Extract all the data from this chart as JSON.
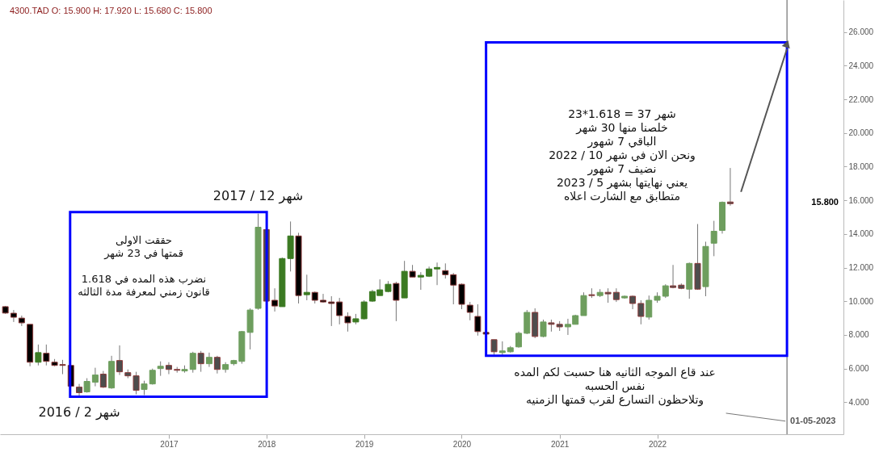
{
  "chart_data": {
    "type": "candlestick",
    "title": "4300.TAD   O: 15.900  H: 17.920  L: 15.680  C: 15.800",
    "x": [
      "2015-05",
      "2015-06",
      "2015-07",
      "2015-08",
      "2015-09",
      "2015-10",
      "2015-11",
      "2015-12",
      "2016-01",
      "2016-02",
      "2016-03",
      "2016-04",
      "2016-05",
      "2016-06",
      "2016-07",
      "2016-08",
      "2016-09",
      "2016-10",
      "2016-11",
      "2016-12",
      "2017-01",
      "2017-02",
      "2017-03",
      "2017-04",
      "2017-05",
      "2017-06",
      "2017-07",
      "2017-08",
      "2017-09",
      "2017-10",
      "2017-11",
      "2017-12",
      "2018-01",
      "2018-02",
      "2018-03",
      "2018-04",
      "2018-05",
      "2018-06",
      "2018-07",
      "2018-08",
      "2018-09",
      "2018-10",
      "2018-11",
      "2018-12",
      "2019-01",
      "2019-02",
      "2019-03",
      "2019-04",
      "2019-05",
      "2019-06",
      "2019-07",
      "2019-08",
      "2019-09",
      "2019-10",
      "2019-11",
      "2019-12",
      "2020-01",
      "2020-02",
      "2020-03",
      "2020-04",
      "2020-05",
      "2020-06",
      "2020-07",
      "2020-08",
      "2020-09",
      "2020-10",
      "2020-11",
      "2020-12",
      "2021-01",
      "2021-02",
      "2021-03",
      "2021-04",
      "2021-05",
      "2021-06",
      "2021-07",
      "2021-08",
      "2021-09",
      "2021-10",
      "2021-11",
      "2021-12",
      "2022-01",
      "2022-02",
      "2022-03",
      "2022-04",
      "2022-05",
      "2022-06",
      "2022-07",
      "2022-08",
      "2022-09",
      "2022-10"
    ],
    "ohlc": [
      [
        9.68,
        9.72,
        9.25,
        9.3
      ],
      [
        9.29,
        9.48,
        8.77,
        9.05
      ],
      [
        9.0,
        9.15,
        8.53,
        8.72
      ],
      [
        8.63,
        8.63,
        6.14,
        6.38
      ],
      [
        6.38,
        7.43,
        6.19,
        6.95
      ],
      [
        6.91,
        7.43,
        6.19,
        6.43
      ],
      [
        6.38,
        6.57,
        6.14,
        6.19
      ],
      [
        6.24,
        6.52,
        5.67,
        6.19
      ],
      [
        6.19,
        6.19,
        4.9,
        4.95
      ],
      [
        4.9,
        5.09,
        4.33,
        4.57
      ],
      [
        4.62,
        5.43,
        4.57,
        5.24
      ],
      [
        5.19,
        6.05,
        4.95,
        5.62
      ],
      [
        5.67,
        5.86,
        4.85,
        4.9
      ],
      [
        4.85,
        6.76,
        4.8,
        6.43
      ],
      [
        6.48,
        7.38,
        5.62,
        5.81
      ],
      [
        5.76,
        5.95,
        5.43,
        5.57
      ],
      [
        5.57,
        5.81,
        4.47,
        4.71
      ],
      [
        4.76,
        5.28,
        4.43,
        5.09
      ],
      [
        5.09,
        6.0,
        5.05,
        5.9
      ],
      [
        6.0,
        6.43,
        5.57,
        6.14
      ],
      [
        6.19,
        6.38,
        5.67,
        5.95
      ],
      [
        5.95,
        6.1,
        5.76,
        5.9
      ],
      [
        5.86,
        6.19,
        5.76,
        5.95
      ],
      [
        5.95,
        7.0,
        5.76,
        6.91
      ],
      [
        6.91,
        7.05,
        5.81,
        6.29
      ],
      [
        6.29,
        6.95,
        6.1,
        6.67
      ],
      [
        6.67,
        6.76,
        5.71,
        5.95
      ],
      [
        5.95,
        6.38,
        5.76,
        6.24
      ],
      [
        6.29,
        6.52,
        6.19,
        6.48
      ],
      [
        6.43,
        8.24,
        6.29,
        8.2
      ],
      [
        8.15,
        9.58,
        7.14,
        9.48
      ],
      [
        9.58,
        15.21,
        9.5,
        14.4
      ],
      [
        14.26,
        14.35,
        9.96,
        10.01
      ],
      [
        10.06,
        10.77,
        9.39,
        9.72
      ],
      [
        9.68,
        12.6,
        9.68,
        12.54
      ],
      [
        12.54,
        14.74,
        11.77,
        13.88
      ],
      [
        13.88,
        14.07,
        9.87,
        10.34
      ],
      [
        10.39,
        11.58,
        10.06,
        10.53
      ],
      [
        10.53,
        10.58,
        9.87,
        10.06
      ],
      [
        10.06,
        10.44,
        9.91,
        9.96
      ],
      [
        9.96,
        10.3,
        8.53,
        9.87
      ],
      [
        9.96,
        10.2,
        8.63,
        9.15
      ],
      [
        9.1,
        9.34,
        8.2,
        8.72
      ],
      [
        8.77,
        9.25,
        8.63,
        8.96
      ],
      [
        8.96,
        10.06,
        8.91,
        9.96
      ],
      [
        10.01,
        10.68,
        9.96,
        10.58
      ],
      [
        10.34,
        11.3,
        10.34,
        10.68
      ],
      [
        10.58,
        11.2,
        10.53,
        11.01
      ],
      [
        11.06,
        11.16,
        8.82,
        10.06
      ],
      [
        10.2,
        12.4,
        10.2,
        11.78
      ],
      [
        11.78,
        12.16,
        11.44,
        11.44
      ],
      [
        11.44,
        11.73,
        10.68,
        11.54
      ],
      [
        11.49,
        12.06,
        11.44,
        11.92
      ],
      [
        11.92,
        12.3,
        10.96,
        12.01
      ],
      [
        11.82,
        12.25,
        11.35,
        11.58
      ],
      [
        11.58,
        11.68,
        9.82,
        10.96
      ],
      [
        11.01,
        11.06,
        9.53,
        9.82
      ],
      [
        9.77,
        9.96,
        8.87,
        9.34
      ],
      [
        9.1,
        9.82,
        7.96,
        8.2
      ],
      [
        8.15,
        8.15,
        8.05,
        8.05
      ],
      [
        7.72,
        7.72,
        6.81,
        7.0
      ],
      [
        6.95,
        7.62,
        6.81,
        7.05
      ],
      [
        7.0,
        7.34,
        6.95,
        7.24
      ],
      [
        7.29,
        8.2,
        7.24,
        8.1
      ],
      [
        8.1,
        9.48,
        8.05,
        9.34
      ],
      [
        9.34,
        9.58,
        7.81,
        7.91
      ],
      [
        7.91,
        8.91,
        7.86,
        8.77
      ],
      [
        8.72,
        8.91,
        8.2,
        8.63
      ],
      [
        8.63,
        8.82,
        8.24,
        8.48
      ],
      [
        8.48,
        8.96,
        8.0,
        8.63
      ],
      [
        8.63,
        9.2,
        8.63,
        9.15
      ],
      [
        9.15,
        10.53,
        9.15,
        10.34
      ],
      [
        10.39,
        10.77,
        10.2,
        10.34
      ],
      [
        10.34,
        10.72,
        10.25,
        10.53
      ],
      [
        10.53,
        10.77,
        9.91,
        10.44
      ],
      [
        10.53,
        10.77,
        9.96,
        10.1
      ],
      [
        10.2,
        10.34,
        10.15,
        10.3
      ],
      [
        10.3,
        10.34,
        9.53,
        9.87
      ],
      [
        9.87,
        10.06,
        8.63,
        9.1
      ],
      [
        9.06,
        10.34,
        8.91,
        10.06
      ],
      [
        10.06,
        10.53,
        9.91,
        10.3
      ],
      [
        10.3,
        11.01,
        10.2,
        10.92
      ],
      [
        10.92,
        12.16,
        10.77,
        10.82
      ],
      [
        10.96,
        11.06,
        10.72,
        10.77
      ],
      [
        10.72,
        12.3,
        10.15,
        12.25
      ],
      [
        12.25,
        14.59,
        10.68,
        10.72
      ],
      [
        10.87,
        13.54,
        10.3,
        13.26
      ],
      [
        13.45,
        14.78,
        12.68,
        14.16
      ],
      [
        14.21,
        15.93,
        14.02,
        15.88
      ],
      [
        15.9,
        17.92,
        15.68,
        15.8
      ]
    ],
    "colors": [
      "#000000",
      "#000000",
      "#000000",
      "#000000",
      "#3b7a22",
      "#000000",
      "#000000",
      "#000000",
      "#000000",
      "#4d4d4d",
      "#6e9e5e",
      "#6e9e5e",
      "#4d4d4d",
      "#6e9e5e",
      "#4d4d4d",
      "#4d4d4d",
      "#4d4d4d",
      "#6e9e5e",
      "#6e9e5e",
      "#6e9e5e",
      "#4d4d4d",
      "#4d4d4d",
      "#6e9e5e",
      "#6e9e5e",
      "#4d4d4d",
      "#6e9e5e",
      "#4d4d4d",
      "#6e9e5e",
      "#6e9e5e",
      "#6e9e5e",
      "#6e9e5e",
      "#6e9e5e",
      "#4d4d4d",
      "#000000",
      "#3b7a22",
      "#3b7a22",
      "#000000",
      "#3b7a22",
      "#000000",
      "#000000",
      "#000000",
      "#000000",
      "#000000",
      "#3b7a22",
      "#3b7a22",
      "#3b7a22",
      "#3b7a22",
      "#3b7a22",
      "#000000",
      "#3b7a22",
      "#000000",
      "#3b7a22",
      "#3b7a22",
      "#3b7a22",
      "#000000",
      "#000000",
      "#000000",
      "#000000",
      "#000000",
      "#000000",
      "#4d4d4d",
      "#6e9e5e",
      "#6e9e5e",
      "#6e9e5e",
      "#6e9e5e",
      "#4d4d4d",
      "#6e9e5e",
      "#4d4d4d",
      "#4d4d4d",
      "#6e9e5e",
      "#6e9e5e",
      "#6e9e5e",
      "#4d4d4d",
      "#6e9e5e",
      "#4d4d4d",
      "#4d4d4d",
      "#6e9e5e",
      "#4d4d4d",
      "#4d4d4d",
      "#6e9e5e",
      "#6e9e5e",
      "#6e9e5e",
      "#4d4d4d",
      "#4d4d4d",
      "#6e9e5e",
      "#4d4d4d",
      "#6e9e5e",
      "#6e9e5e",
      "#6e9e5e",
      "#4d4d4d"
    ],
    "xlim": [
      "2015-04-26",
      "2023-11-13"
    ],
    "xticks": [
      "2017",
      "2018",
      "2019",
      "2020",
      "2021",
      "2022"
    ],
    "ylim": [
      2.1,
      27.9
    ],
    "yticks": [
      {
        "value": 4,
        "label": "4.000"
      },
      {
        "value": 6,
        "label": "6.000"
      },
      {
        "value": 8,
        "label": "8.000"
      },
      {
        "value": 10,
        "label": "10.000"
      },
      {
        "value": 12,
        "label": "12.000"
      },
      {
        "value": 14,
        "label": "14.000"
      },
      {
        "value": 16,
        "label": "16.000"
      },
      {
        "value": 18,
        "label": "18.000"
      },
      {
        "value": 20,
        "label": "20.000"
      },
      {
        "value": 22,
        "label": "22.000"
      },
      {
        "value": 24,
        "label": "24.000"
      },
      {
        "value": 26,
        "label": "26.000"
      }
    ],
    "ref_lines": [
      {
        "axis": "x",
        "value": "2023-05-01",
        "label": "01-05-2023",
        "color": "#555555"
      }
    ],
    "annotations": [
      {
        "text": "شهر 12 / 2017",
        "x": "2017-12",
        "y": 15.21
      },
      {
        "text": "شهر 2 / 2016",
        "x": "2016-02",
        "y": 4.33
      },
      "حققت الاولى\nقمتها في 23 شهر",
      "نضرب هذه المده في  1.618\nقانون زمني لمعرفة مدة الثالثه",
      "23*1.618 = 37 شهر\nخلصنا منها 30 شهر\nالباقي 7 شهور\nونحن الان في شهر 10 / 2022\nنضيف 7 شهور\nيعني نهايتها بشهر 5 / 2023\nمتطابق مع الشارت اعلاه",
      {
        "text": "عند قاع الموجه الثانيه هنا حسبت لكم المده\nنفس الحسبه\nوتلاحظون التسارع لقرب قمتها الزمنيه",
        "x": "2023-05-01",
        "y": 2.85
      },
      "15.800"
    ]
  }
}
